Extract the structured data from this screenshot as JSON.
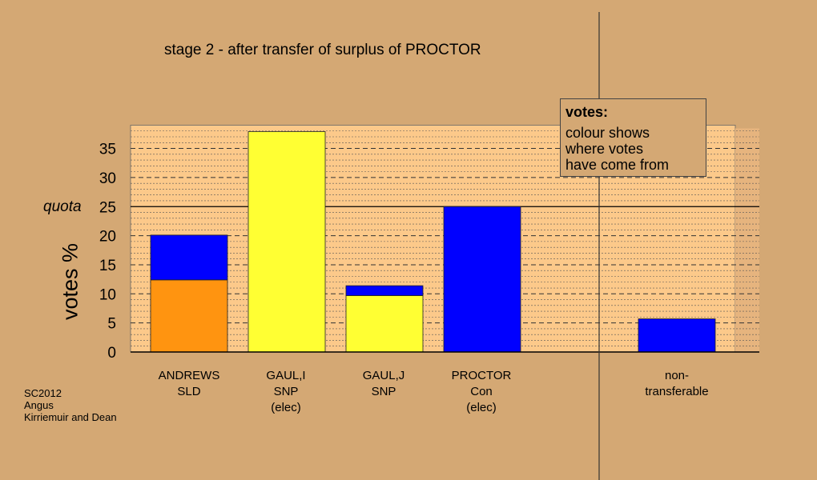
{
  "title": "stage 2 - after transfer of surplus of PROCTOR",
  "source": [
    "SC2012",
    "Angus",
    "Kirriemuir and Dean"
  ],
  "legend": {
    "title": "votes:",
    "lines": [
      "colour shows",
      "where votes",
      "have come from"
    ]
  },
  "colors": {
    "background": "#d4a874",
    "plot_area": "#fcc98a",
    "SLD": "#ff9410",
    "SNP": "#ffff33",
    "Con": "#0000ff"
  },
  "chart_data": {
    "type": "bar",
    "stacked": true,
    "title": "stage 2 - after transfer of surplus of PROCTOR",
    "ylabel": "votes %",
    "ylim": [
      0,
      39
    ],
    "yticks": [
      0,
      5,
      10,
      15,
      20,
      25,
      30,
      35
    ],
    "quota": {
      "label": "quota",
      "value": 25
    },
    "grid": true,
    "candidates": [
      {
        "labels": [
          "ANDREWS",
          "SLD"
        ],
        "segments": [
          {
            "party": "SLD",
            "value": 12.4
          },
          {
            "party": "Con",
            "value": 7.7
          }
        ]
      },
      {
        "labels": [
          "GAUL,I",
          "SNP",
          "(elec)"
        ],
        "segments": [
          {
            "party": "SNP",
            "value": 37.9
          }
        ]
      },
      {
        "labels": [
          "GAUL,J",
          "SNP"
        ],
        "segments": [
          {
            "party": "SNP",
            "value": 9.7
          },
          {
            "party": "Con",
            "value": 1.7
          }
        ]
      },
      {
        "labels": [
          "PROCTOR",
          "Con",
          "(elec)"
        ],
        "segments": [
          {
            "party": "Con",
            "value": 25.0
          }
        ]
      },
      {
        "labels": [
          "non-",
          "transferable"
        ],
        "segments": [
          {
            "party": "Con",
            "value": 5.7
          }
        ]
      }
    ]
  }
}
